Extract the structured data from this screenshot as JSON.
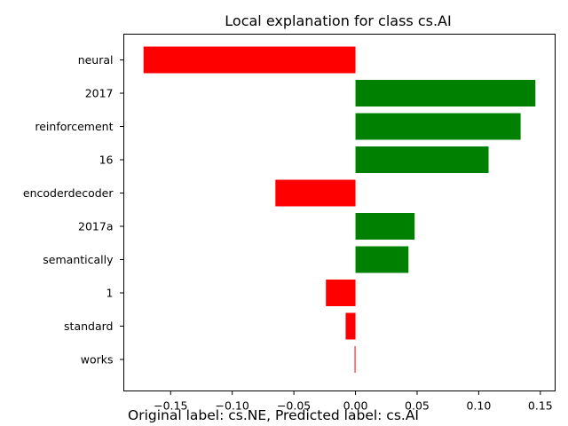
{
  "chart_data": {
    "type": "bar",
    "orientation": "horizontal",
    "title": "Local explanation for class cs.AI",
    "xlabel": "",
    "ylabel": "",
    "categories": [
      "neural",
      "2017",
      "reinforcement",
      "16",
      "encoderdecoder",
      "2017a",
      "semantically",
      "1",
      "standard",
      "works"
    ],
    "values": [
      -0.172,
      0.146,
      0.134,
      0.108,
      -0.065,
      0.048,
      0.043,
      -0.024,
      -0.008,
      -0.0007
    ],
    "xlim": [
      -0.188,
      0.162
    ],
    "xticks": [
      -0.15,
      -0.1,
      -0.05,
      0.0,
      0.05,
      0.1,
      0.15
    ],
    "xtick_labels": [
      "−0.15",
      "−0.10",
      "−0.05",
      "0.00",
      "0.05",
      "0.10",
      "0.15"
    ],
    "colors": {
      "positive": "#008000",
      "negative": "#ff0000"
    },
    "grid": false,
    "legend": "none"
  },
  "footer": {
    "caption": "Original label: cs.NE, Predicted label: cs.AI"
  }
}
